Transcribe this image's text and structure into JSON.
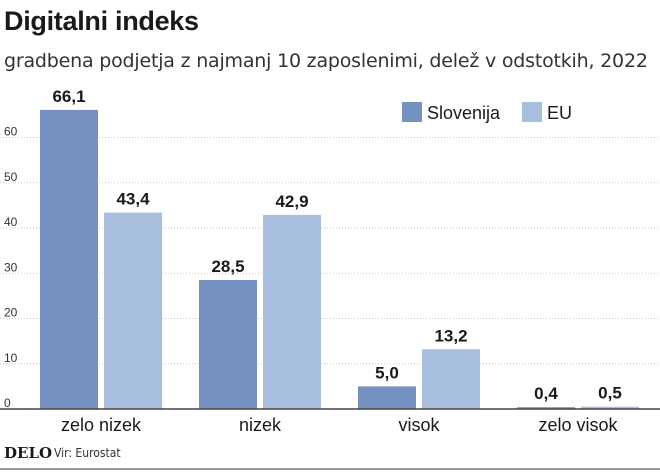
{
  "chart_data": {
    "type": "bar",
    "title": "Digitalni indeks",
    "subtitle": "gradbena podjetja z najmanj 10 zaposlenimi, delež v odstotkih, 2022",
    "categories": [
      "zelo nizek",
      "nizek",
      "visok",
      "zelo visok"
    ],
    "series": [
      {
        "name": "Slovenija",
        "values": [
          66.1,
          28.5,
          5.0,
          0.4
        ],
        "labels": [
          "66,1",
          "28,5",
          "5,0",
          "0,4"
        ],
        "color": "#7491bf"
      },
      {
        "name": "EU",
        "values": [
          43.4,
          42.9,
          13.2,
          0.5
        ],
        "labels": [
          "43,4",
          "42,9",
          "13,2",
          "0,5"
        ],
        "color": "#a9bfe0"
      }
    ],
    "yticks": [
      0,
      10,
      20,
      30,
      40,
      50,
      60
    ],
    "ylim": [
      0,
      70
    ],
    "grid": true,
    "legend": "top-right"
  },
  "footer": {
    "logo": "DELO",
    "source": "Vir: Eurostat"
  }
}
